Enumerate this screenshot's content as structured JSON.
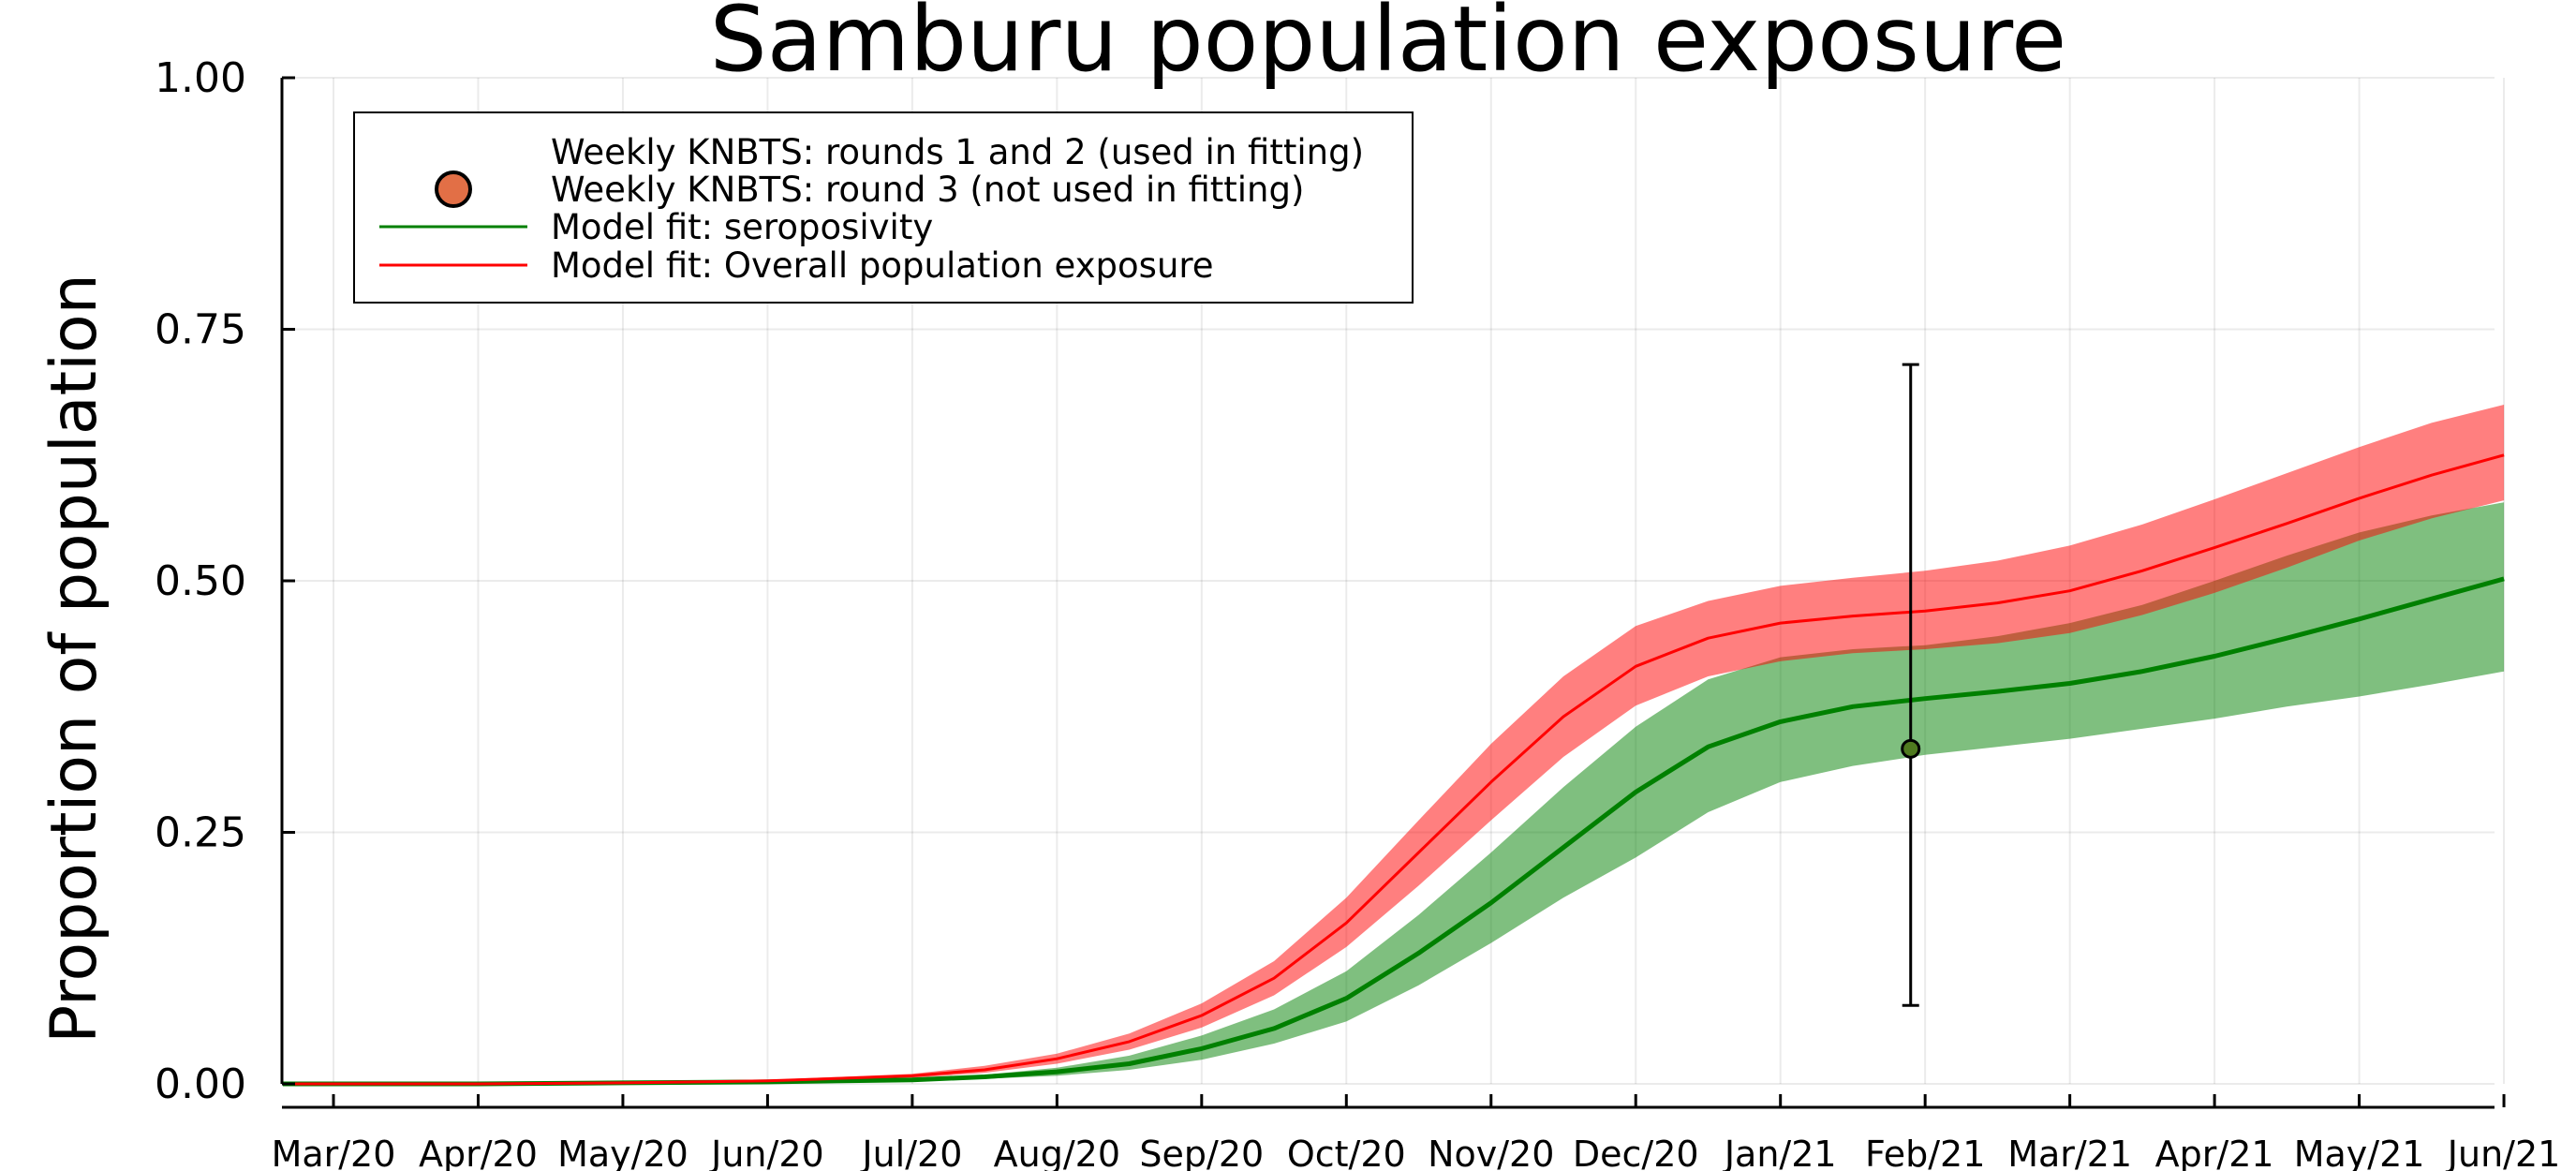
{
  "chart_data": {
    "type": "line",
    "title": "Samburu population exposure",
    "xlabel": "",
    "ylabel": "Proportion of population",
    "ylim": [
      0,
      1
    ],
    "yticks": [
      "0.00",
      "0.25",
      "0.50",
      "0.75",
      "1.00"
    ],
    "xticks": [
      "Mar/20",
      "Apr/20",
      "May/20",
      "Jun/20",
      "Jul/20",
      "Aug/20",
      "Sep/20",
      "Oct/20",
      "Nov/20",
      "Dec/20",
      "Jan/21",
      "Feb/21",
      "Mar/21",
      "Apr/21",
      "May/21",
      "Jun/21"
    ],
    "grid": true,
    "legend_position": "top-left",
    "legend": [
      {
        "label": "Weekly KNBTS: rounds 1 and 2 (used in fitting)",
        "marker": "none"
      },
      {
        "label": "Weekly KNBTS: round 3 (not used in fitting)",
        "marker": "circle"
      },
      {
        "label": "Model fit: seroposivity",
        "marker": "line"
      },
      {
        "label": "Model fit: Overall population exposure",
        "marker": "line"
      }
    ],
    "colors": {
      "seropositivity": "#008000",
      "exposure": "#ff0000",
      "round3_point": "#e26f46"
    },
    "series": [
      {
        "name": "Model fit: seroposivity",
        "x": [
          -0.35,
          0,
          1,
          2,
          3,
          4,
          4.5,
          5,
          5.5,
          6,
          6.5,
          7,
          7.5,
          8,
          8.5,
          9,
          9.5,
          10,
          10.5,
          11,
          11.5,
          12,
          12.5,
          13,
          13.5,
          14,
          14.5,
          15
        ],
        "y": [
          0,
          0,
          0,
          0.001,
          0.002,
          0.004,
          0.007,
          0.012,
          0.02,
          0.035,
          0.055,
          0.085,
          0.13,
          0.18,
          0.235,
          0.29,
          0.335,
          0.36,
          0.375,
          0.383,
          0.39,
          0.398,
          0.41,
          0.425,
          0.443,
          0.462,
          0.482,
          0.502
        ],
        "lower": [
          0,
          0,
          0,
          0.001,
          0.002,
          0.003,
          0.005,
          0.008,
          0.014,
          0.024,
          0.04,
          0.062,
          0.098,
          0.14,
          0.185,
          0.225,
          0.27,
          0.3,
          0.316,
          0.327,
          0.335,
          0.343,
          0.353,
          0.363,
          0.375,
          0.385,
          0.397,
          0.41
        ],
        "upper": [
          0,
          0,
          0,
          0.001,
          0.003,
          0.005,
          0.009,
          0.016,
          0.028,
          0.048,
          0.074,
          0.112,
          0.168,
          0.23,
          0.295,
          0.355,
          0.402,
          0.424,
          0.432,
          0.436,
          0.445,
          0.458,
          0.476,
          0.5,
          0.525,
          0.548,
          0.565,
          0.578
        ]
      },
      {
        "name": "Model fit: Overall population exposure",
        "x": [
          -0.35,
          0,
          1,
          2,
          3,
          4,
          4.5,
          5,
          5.5,
          6,
          6.5,
          7,
          7.5,
          8,
          8.5,
          9,
          9.5,
          10,
          10.5,
          11,
          11.5,
          12,
          12.5,
          13,
          13.5,
          14,
          14.5,
          15
        ],
        "y": [
          0,
          0,
          0,
          0.001,
          0.003,
          0.008,
          0.014,
          0.025,
          0.042,
          0.068,
          0.105,
          0.16,
          0.23,
          0.3,
          0.365,
          0.415,
          0.443,
          0.458,
          0.465,
          0.47,
          0.478,
          0.49,
          0.51,
          0.533,
          0.557,
          0.582,
          0.605,
          0.625
        ],
        "lower": [
          0,
          0,
          0,
          0.001,
          0.002,
          0.006,
          0.011,
          0.02,
          0.034,
          0.056,
          0.088,
          0.136,
          0.197,
          0.262,
          0.325,
          0.376,
          0.405,
          0.42,
          0.428,
          0.432,
          0.438,
          0.448,
          0.466,
          0.488,
          0.513,
          0.54,
          0.562,
          0.58
        ],
        "upper": [
          0,
          0,
          0,
          0.001,
          0.004,
          0.01,
          0.018,
          0.03,
          0.05,
          0.08,
          0.122,
          0.185,
          0.262,
          0.338,
          0.405,
          0.455,
          0.48,
          0.495,
          0.503,
          0.51,
          0.52,
          0.535,
          0.556,
          0.581,
          0.607,
          0.633,
          0.657,
          0.675
        ]
      }
    ],
    "points": [
      {
        "name": "Weekly KNBTS: round 3 (not used in fitting)",
        "x": 10.9,
        "y": 0.333,
        "err_low": 0.078,
        "err_high": 0.715
      }
    ]
  }
}
